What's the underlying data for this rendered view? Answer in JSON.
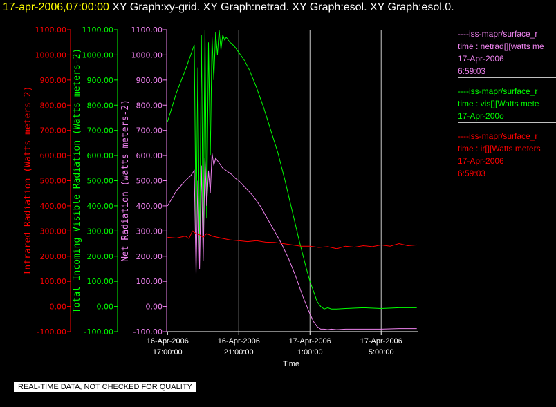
{
  "header": {
    "date_label": "17-apr-2006,07:00:00",
    "graph_labels": "XY Graph:xy-grid.  XY Graph:netrad.  XY Graph:esol.  XY Graph:esol.0."
  },
  "legend": [
    {
      "lines": [
        "----iss-mapr/surface_r",
        "time : netrad[][watts me",
        "17-Apr-2006",
        "6:59:03"
      ],
      "color": "#ee82ee"
    },
    {
      "lines": [
        "----iss-mapr/surface_r",
        "time : vis[][Watts mete",
        "17-Apr-200o"
      ],
      "color": "#00ff00"
    },
    {
      "lines": [
        "----iss-mapr/surface_r",
        "time : ir[][Watts meters",
        "17-Apr-2006",
        "6:59:03"
      ],
      "color": "#ff0000"
    }
  ],
  "footer": {
    "quality_note": "REAL-TIME DATA, NOT CHECKED FOR QUALITY"
  },
  "chart_data": {
    "type": "line",
    "xlabel": "Time",
    "x_ticks": [
      {
        "line1": "16-Apr-2006",
        "line2": "17:00:00",
        "hour": 0
      },
      {
        "line1": "16-Apr-2006",
        "line2": "21:00:00",
        "hour": 4
      },
      {
        "line1": "17-Apr-2006",
        "line2": "1:00:00",
        "hour": 8
      },
      {
        "line1": "17-Apr-2006",
        "line2": "5:00:00",
        "hour": 12
      }
    ],
    "x_range_hours": [
      -0.05,
      14.05
    ],
    "grid": true,
    "y_axes": [
      {
        "label": "Infrared Radiation (Watts meters-2)",
        "color": "#ff0000",
        "ticks": [
          "1100.00",
          "1000.00",
          "900.00",
          "800.00",
          "700.00",
          "600.00",
          "500.00",
          "400.00",
          "300.00",
          "200.00",
          "100.00",
          "0.00",
          "-100.00"
        ]
      },
      {
        "label": "Total Incoming Visible Radiation (Watts meters-2)",
        "color": "#00ff00",
        "ticks": [
          "1100.00",
          "1000.00",
          "900.00",
          "800.00",
          "700.00",
          "600.00",
          "500.00",
          "400.00",
          "300.00",
          "200.00",
          "100.00",
          "0.00",
          "-100.00"
        ]
      },
      {
        "label": "Net Radiation (watts meters-2)",
        "color": "#ee82ee",
        "ticks": [
          "1100.00",
          "1000.00",
          "900.00",
          "800.00",
          "700.00",
          "600.00",
          "500.00",
          "400.00",
          "300.00",
          "200.00",
          "100.00",
          "0.00",
          "-100.00"
        ]
      }
    ],
    "ylim": [
      -100,
      1100
    ],
    "series": [
      {
        "color": "#00ff00",
        "x": [
          0,
          0.5,
          1,
          1.3,
          1.5,
          1.6,
          1.7,
          1.8,
          1.9,
          2.0,
          2.1,
          2.2,
          2.3,
          2.4,
          2.5,
          2.6,
          2.7,
          2.8,
          2.9,
          3.0,
          3.1,
          3.2,
          3.3,
          3.4,
          3.5,
          3.6,
          3.8,
          4.0,
          4.3,
          4.6,
          5.0,
          5.4,
          5.8,
          6.2,
          6.6,
          7.0,
          7.4,
          7.8,
          8.0,
          8.2,
          8.4,
          8.6,
          8.8,
          9.0,
          9.2,
          9.5,
          10,
          11,
          12,
          13,
          14
        ],
        "y": [
          735,
          850,
          940,
          1000,
          1040,
          300,
          950,
          200,
          1080,
          250,
          1100,
          350,
          1050,
          600,
          1070,
          900,
          1090,
          1000,
          1100,
          1020,
          1080,
          1060,
          1070,
          1060,
          1050,
          1045,
          1030,
          1010,
          980,
          940,
          870,
          790,
          700,
          610,
          500,
          380,
          260,
          150,
          100,
          60,
          20,
          0,
          -10,
          -5,
          -10,
          -10,
          -8,
          -5,
          -8,
          -5,
          -5
        ]
      },
      {
        "color": "#ee82ee",
        "x": [
          0,
          0.5,
          1,
          1.3,
          1.5,
          1.6,
          1.7,
          1.8,
          1.9,
          2.0,
          2.1,
          2.2,
          2.3,
          2.4,
          2.5,
          2.6,
          2.7,
          2.8,
          2.9,
          3.0,
          3.1,
          3.2,
          3.3,
          3.4,
          3.5,
          3.6,
          3.8,
          4.0,
          4.4,
          4.8,
          5.2,
          5.6,
          6.0,
          6.4,
          6.8,
          7.2,
          7.6,
          8.0,
          8.2,
          8.4,
          8.6,
          8.8,
          9.0,
          9.2,
          9.5,
          10,
          11,
          12,
          13,
          14
        ],
        "y": [
          400,
          460,
          500,
          520,
          540,
          130,
          500,
          150,
          560,
          180,
          590,
          400,
          540,
          450,
          610,
          560,
          590,
          580,
          570,
          560,
          550,
          545,
          540,
          535,
          530,
          525,
          510,
          500,
          470,
          440,
          400,
          350,
          300,
          250,
          190,
          120,
          40,
          -30,
          -60,
          -80,
          -90,
          -90,
          -92,
          -90,
          -92,
          -90,
          -90,
          -90,
          -88,
          -88
        ]
      },
      {
        "color": "#ff0000",
        "x": [
          0,
          0.5,
          1,
          1.2,
          1.4,
          1.6,
          1.8,
          2.0,
          2.2,
          2.5,
          3.0,
          3.5,
          4.0,
          4.5,
          5.0,
          5.5,
          6.0,
          6.5,
          7.0,
          7.5,
          8.0,
          8.5,
          9.0,
          9.5,
          10,
          10.5,
          11,
          11.5,
          12,
          12.5,
          13,
          13.5,
          14
        ],
        "y": [
          275,
          272,
          280,
          270,
          300,
          290,
          285,
          275,
          290,
          280,
          272,
          265,
          262,
          258,
          262,
          256,
          255,
          250,
          245,
          240,
          240,
          235,
          238,
          230,
          240,
          236,
          242,
          238,
          245,
          240,
          250,
          242,
          245
        ]
      }
    ]
  }
}
